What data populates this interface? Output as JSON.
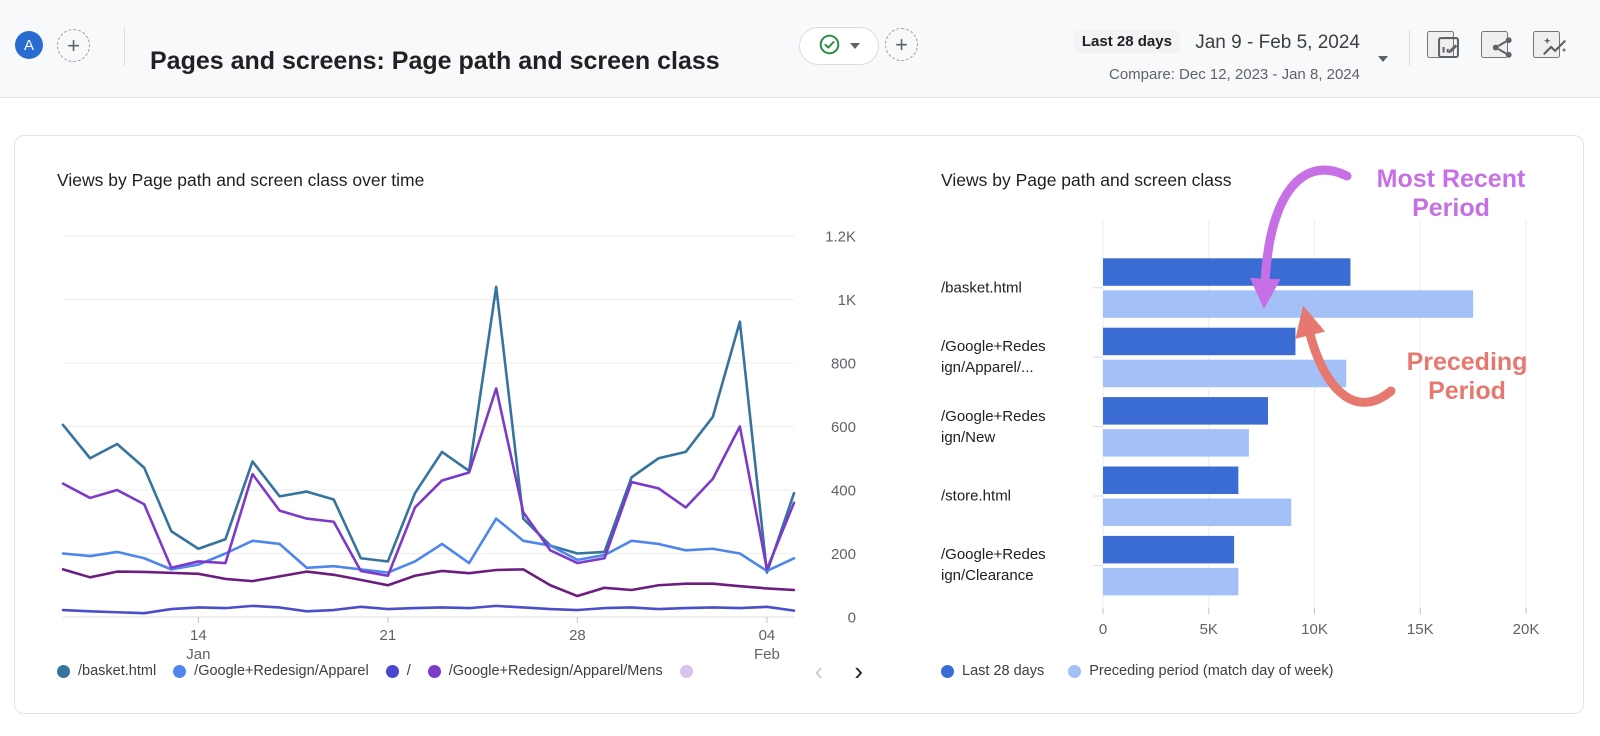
{
  "header": {
    "avatar_letter": "A",
    "title": "Pages and screens: Page path and screen class",
    "date": {
      "preset": "Last 28 days",
      "range": "Jan 9 - Feb 5, 2024",
      "compare": "Compare: Dec 12, 2023 - Jan 8, 2024"
    },
    "plus_glyph": "+"
  },
  "left_chart": {
    "title": "Views by Page path and screen class over time",
    "legend": [
      {
        "label": "/basket.html",
        "color": "#36749e"
      },
      {
        "label": "/Google+Redesign/Apparel",
        "color": "#4f86ec"
      },
      {
        "label": "/",
        "color": "#4a46cf"
      },
      {
        "label": "/Google+Redesign/Apparel/Mens",
        "color": "#7a3bc8"
      },
      {
        "label": "",
        "color": "#d7c3ee"
      }
    ],
    "pager": {
      "prev": "‹",
      "next": "›"
    }
  },
  "right_chart": {
    "title": "Views by Page path and screen class",
    "annotations": {
      "recent": {
        "line1": "Most Recent",
        "line2": "Period",
        "color": "#c770e6"
      },
      "preceding": {
        "line1": "Preceding",
        "line2": "Period",
        "color": "#e5796f"
      }
    }
  },
  "chart_data": [
    {
      "type": "line",
      "title": "Views by Page path and screen class over time",
      "x_range": "Jan 9 - Feb 5, 2024 (28 daily points)",
      "ylim": [
        0,
        1200
      ],
      "yticks": [
        {
          "v": 0,
          "label": "0"
        },
        {
          "v": 200,
          "label": "200"
        },
        {
          "v": 400,
          "label": "400"
        },
        {
          "v": 600,
          "label": "600"
        },
        {
          "v": 800,
          "label": "800"
        },
        {
          "v": 1000,
          "label": "1K"
        },
        {
          "v": 1200,
          "label": "1.2K"
        }
      ],
      "xticks": [
        {
          "day": 5,
          "label": "14",
          "sublabel": "Jan"
        },
        {
          "day": 12,
          "label": "21",
          "sublabel": ""
        },
        {
          "day": 19,
          "label": "28",
          "sublabel": ""
        },
        {
          "day": 26,
          "label": "04",
          "sublabel": "Feb"
        }
      ],
      "series": [
        {
          "name": "/basket.html",
          "color": "#36749e",
          "values": [
            605,
            500,
            545,
            470,
            270,
            215,
            245,
            490,
            380,
            395,
            370,
            185,
            175,
            390,
            520,
            460,
            1040,
            310,
            225,
            200,
            205,
            440,
            500,
            520,
            630,
            930,
            140,
            390
          ]
        },
        {
          "name": "/Google+Redesign/Apparel",
          "color": "#4f86ec",
          "values": [
            200,
            192,
            205,
            185,
            150,
            165,
            200,
            240,
            230,
            155,
            160,
            150,
            140,
            175,
            230,
            170,
            310,
            240,
            225,
            180,
            195,
            240,
            230,
            210,
            215,
            200,
            145,
            185
          ]
        },
        {
          "name": "/",
          "color": "#4a4fc8",
          "values": [
            22,
            18,
            15,
            12,
            25,
            30,
            28,
            35,
            30,
            18,
            22,
            32,
            25,
            28,
            30,
            28,
            35,
            30,
            25,
            22,
            28,
            30,
            25,
            28,
            30,
            28,
            32,
            20
          ]
        },
        {
          "name": "/Google+Redesign/Apparel/Mens",
          "color": "#7d3ac8",
          "values": [
            420,
            375,
            400,
            355,
            155,
            175,
            170,
            450,
            335,
            310,
            300,
            145,
            130,
            345,
            430,
            455,
            720,
            330,
            210,
            170,
            185,
            425,
            405,
            345,
            435,
            600,
            150,
            360
          ]
        },
        {
          "name": "",
          "color": "#6d1d7f",
          "values": [
            150,
            125,
            143,
            142,
            139,
            136,
            120,
            113,
            128,
            143,
            133,
            117,
            100,
            130,
            145,
            138,
            148,
            150,
            100,
            66,
            92,
            85,
            100,
            105,
            105,
            97,
            90,
            85
          ]
        }
      ]
    },
    {
      "type": "bar",
      "orientation": "horizontal",
      "title": "Views by Page path and screen class",
      "categories": [
        "/basket.html",
        "/Google+Redesign/Apparel/...",
        "/Google+Redesign/New",
        "/store.html",
        "/Google+Redesign/Clearance"
      ],
      "xlim": [
        0,
        20000
      ],
      "xticks": [
        {
          "v": 0,
          "label": "0"
        },
        {
          "v": 5000,
          "label": "5K"
        },
        {
          "v": 10000,
          "label": "10K"
        },
        {
          "v": 15000,
          "label": "15K"
        },
        {
          "v": 20000,
          "label": "20K"
        }
      ],
      "series": [
        {
          "name": "Last 28 days",
          "color": "#3b6cd4",
          "values": [
            11700,
            9100,
            7800,
            6400,
            6200
          ]
        },
        {
          "name": "Preceding period (match day of week)",
          "color": "#a3c1f7",
          "values": [
            17500,
            11500,
            6900,
            8900,
            6400
          ]
        }
      ]
    }
  ]
}
